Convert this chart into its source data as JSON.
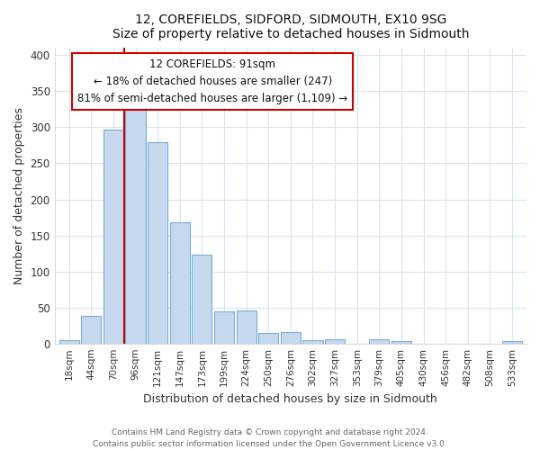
{
  "title": "12, COREFIELDS, SIDFORD, SIDMOUTH, EX10 9SG",
  "subtitle": "Size of property relative to detached houses in Sidmouth",
  "xlabel": "Distribution of detached houses by size in Sidmouth",
  "ylabel": "Number of detached properties",
  "bar_labels": [
    "18sqm",
    "44sqm",
    "70sqm",
    "96sqm",
    "121sqm",
    "147sqm",
    "173sqm",
    "199sqm",
    "224sqm",
    "250sqm",
    "276sqm",
    "302sqm",
    "327sqm",
    "353sqm",
    "379sqm",
    "405sqm",
    "430sqm",
    "456sqm",
    "482sqm",
    "508sqm",
    "533sqm"
  ],
  "bar_values": [
    4,
    38,
    297,
    328,
    279,
    168,
    123,
    44,
    46,
    15,
    16,
    5,
    6,
    0,
    6,
    3,
    0,
    0,
    0,
    0,
    3
  ],
  "bar_color": "#c5d8f0",
  "bar_edge_color": "#7aadd4",
  "vline_color": "#cc0000",
  "annotation_line1": "12 COREFIELDS: 91sqm",
  "annotation_line2": "← 18% of detached houses are smaller (247)",
  "annotation_line3": "81% of semi-detached houses are larger (1,109) →",
  "annotation_box_color": "white",
  "annotation_box_edge": "#cc0000",
  "ylim": [
    0,
    410
  ],
  "yticks": [
    0,
    50,
    100,
    150,
    200,
    250,
    300,
    350,
    400
  ],
  "footer_line1": "Contains HM Land Registry data © Crown copyright and database right 2024.",
  "footer_line2": "Contains public sector information licensed under the Open Government Licence v3.0.",
  "bg_color": "#ffffff",
  "plot_bg_color": "#ffffff",
  "grid_color": "#d8e4f0"
}
